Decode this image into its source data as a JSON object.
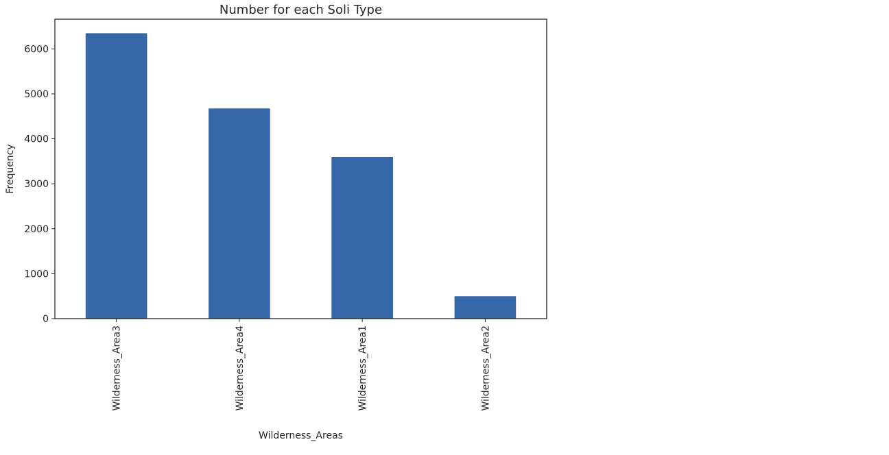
{
  "chart_data": {
    "type": "bar",
    "title": "Number for each Soli Type",
    "xlabel": "Wilderness_Areas",
    "ylabel": "Frequency",
    "categories": [
      "Wilderness_Area3",
      "Wilderness_Area4",
      "Wilderness_Area1",
      "Wilderness_Area2"
    ],
    "values": [
      6349,
      4675,
      3597,
      499
    ],
    "ylim": [
      0,
      6661
    ],
    "yticks": [
      0,
      1000,
      2000,
      3000,
      4000,
      5000,
      6000
    ],
    "grid": false,
    "legend": "none",
    "bar_color": "#3567a8",
    "axis_color": "#262626"
  }
}
